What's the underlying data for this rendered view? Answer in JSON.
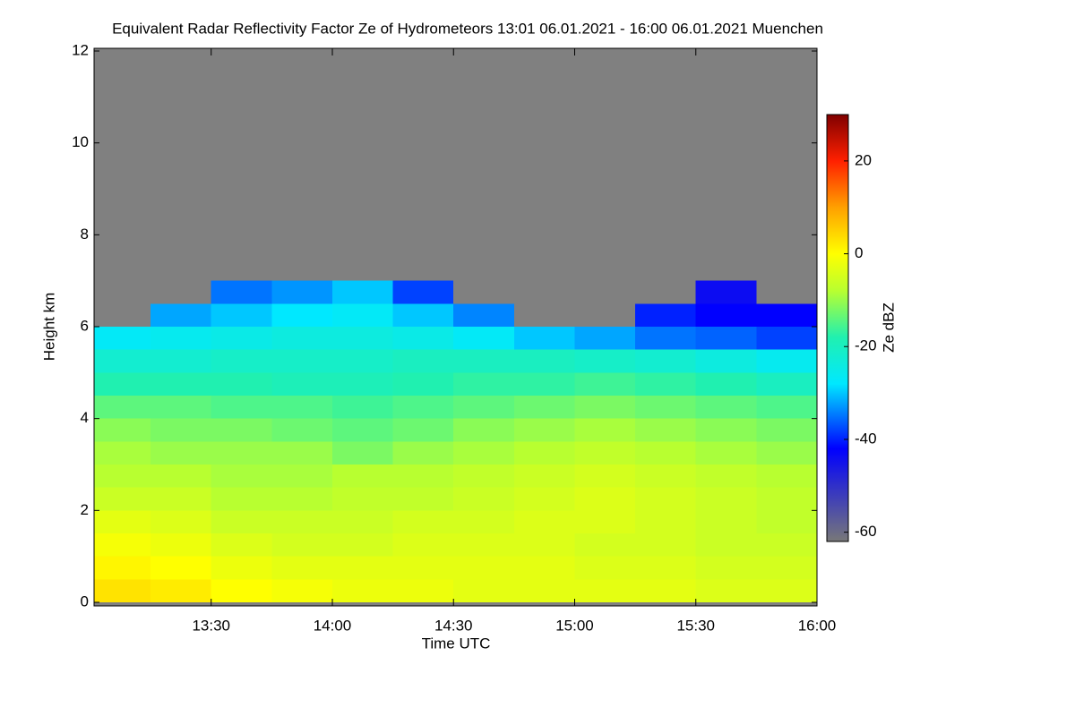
{
  "chart_data": {
    "type": "heatmap",
    "title": "Equivalent Radar Reflectivity Factor Ze of Hydrometeors   13:01 06.01.2021 - 16:00 06.01.2021 Muenchen",
    "x_label": "Time UTC",
    "y_label": "Height km",
    "colorbar_label": "Ze dBZ",
    "x_bins": [
      781,
      795,
      810,
      825,
      840,
      855,
      870,
      885,
      900,
      915,
      930,
      945,
      960
    ],
    "y_bins": [
      0,
      0.5,
      1,
      1.5,
      2,
      2.5,
      3,
      3.5,
      4,
      4.5,
      5,
      5.5,
      6,
      6.5,
      7
    ],
    "z": [
      [
        3,
        2,
        0,
        -1,
        -2,
        -2,
        -3,
        -3,
        -3,
        -3,
        -4,
        -4
      ],
      [
        1,
        0,
        -2,
        -3,
        -3,
        -3,
        -3,
        -3,
        -4,
        -4,
        -5,
        -5
      ],
      [
        -1,
        -2,
        -4,
        -5,
        -5,
        -4,
        -4,
        -4,
        -5,
        -5,
        -6,
        -6
      ],
      [
        -3,
        -4,
        -6,
        -6,
        -6,
        -5,
        -5,
        -4,
        -4,
        -5,
        -6,
        -7
      ],
      [
        -6,
        -6,
        -8,
        -8,
        -7,
        -7,
        -6,
        -5,
        -4,
        -5,
        -6,
        -7
      ],
      [
        -8,
        -8,
        -9,
        -9,
        -8,
        -8,
        -7,
        -6,
        -5,
        -6,
        -7,
        -8
      ],
      [
        -9,
        -10,
        -10,
        -10,
        -12,
        -10,
        -9,
        -8,
        -7,
        -8,
        -9,
        -10
      ],
      [
        -11,
        -12,
        -12,
        -13,
        -14,
        -13,
        -11,
        -10,
        -9,
        -10,
        -11,
        -12
      ],
      [
        -14,
        -14,
        -15,
        -15,
        -16,
        -15,
        -14,
        -13,
        -12,
        -13,
        -14,
        -15
      ],
      [
        -18,
        -18,
        -18,
        -19,
        -19,
        -18,
        -17,
        -17,
        -16,
        -17,
        -18,
        -20
      ],
      [
        -22,
        -22,
        -21,
        -21,
        -21,
        -20,
        -20,
        -20,
        -21,
        -22,
        -24,
        -26
      ],
      [
        -27,
        -26,
        -25,
        -24,
        -24,
        -25,
        -27,
        -30,
        -32,
        -35,
        -36,
        -38
      ],
      [
        null,
        -32,
        -30,
        -28,
        -27,
        -30,
        -34,
        null,
        null,
        -40,
        -42,
        -42
      ],
      [
        null,
        null,
        -35,
        -33,
        -30,
        -38,
        null,
        null,
        null,
        null,
        -44,
        null
      ]
    ],
    "xlim": [
      781,
      960
    ],
    "xticks": [
      {
        "value": 810,
        "label": "13:30"
      },
      {
        "value": 840,
        "label": "14:00"
      },
      {
        "value": 870,
        "label": "14:30"
      },
      {
        "value": 900,
        "label": "15:00"
      },
      {
        "value": 930,
        "label": "15:30"
      },
      {
        "value": 960,
        "label": "16:00"
      }
    ],
    "ylim": [
      0,
      12
    ],
    "yticks": [
      0,
      2,
      4,
      6,
      8,
      10,
      12
    ],
    "zlim": [
      -62,
      30
    ],
    "zticks": [
      -60,
      -40,
      -20,
      0,
      20
    ],
    "background_color": "#808080",
    "colorscale": [
      {
        "value": -62,
        "color": "#787878"
      },
      {
        "value": -42,
        "color": "#0000ff"
      },
      {
        "value": -28,
        "color": "#00e8ff"
      },
      {
        "value": -18,
        "color": "#20f0b0"
      },
      {
        "value": -8,
        "color": "#b8ff30"
      },
      {
        "value": 0,
        "color": "#ffff00"
      },
      {
        "value": 10,
        "color": "#ffa000"
      },
      {
        "value": 20,
        "color": "#ff2000"
      },
      {
        "value": 30,
        "color": "#800000"
      }
    ]
  }
}
